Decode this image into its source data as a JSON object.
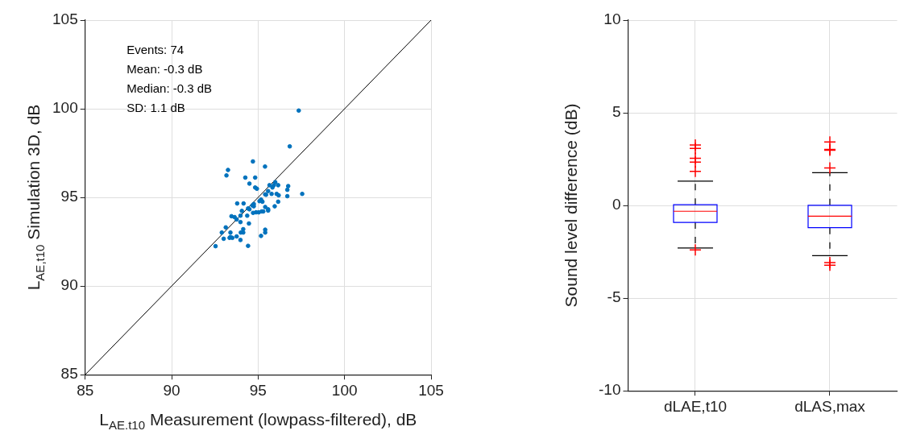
{
  "chart_data": [
    {
      "type": "scatter",
      "xlabel": "L$_{AE.t10}$ Measurement (lowpass-filtered), dB",
      "ylabel": "L$_{AE,t10}$ Simulation 3D, dB",
      "annotations": [
        "Events: 74",
        "Mean: -0.3 dB",
        "Median: -0.3 dB",
        "SD: 1.1 dB"
      ],
      "xlim": [
        85,
        105
      ],
      "xticks": [
        85,
        90,
        95,
        100,
        105
      ],
      "ylim": [
        85,
        105
      ],
      "yticks": [
        85,
        90,
        95,
        100,
        105
      ],
      "grid": true,
      "marker": "circle",
      "series": [
        {
          "color": "#0072bd",
          "x": [
            97.35,
            96.83,
            94.7,
            93.26,
            93.17,
            95.4,
            94.26,
            94.83,
            94.5,
            94.83,
            94.93,
            95.99,
            95.91,
            95.66,
            96.16,
            95.83,
            95.58,
            95.41,
            95.78,
            96.07,
            96.19,
            96.74,
            96.69,
            96.69,
            97.55,
            95.17,
            95.08,
            95.25,
            96.16,
            95.96,
            95.41,
            95.58,
            95.58,
            95.3,
            95.21,
            95.04,
            94.88,
            94.71,
            94.75,
            94.75,
            94.42,
            94.5,
            94.37,
            94.16,
            93.79,
            94.06,
            93.98,
            93.64,
            93.46,
            93.76,
            93.98,
            94.47,
            93.13,
            94.14,
            94.14,
            94.0,
            95.41,
            95.41,
            95.17,
            93.4,
            92.9,
            93.76,
            93.4,
            93.51,
            93.35,
            93.01,
            93.98,
            94.42,
            92.54,
            94.67,
            95.46
          ],
          "values": [
            99.9,
            97.88,
            97.03,
            96.55,
            96.24,
            96.74,
            96.12,
            96.12,
            95.78,
            95.56,
            95.49,
            95.86,
            95.69,
            95.69,
            95.69,
            95.56,
            95.36,
            95.17,
            95.2,
            95.2,
            95.12,
            95.64,
            95.43,
            95.07,
            95.2,
            94.88,
            94.79,
            94.76,
            94.76,
            94.5,
            94.46,
            94.33,
            94.26,
            94.21,
            94.21,
            94.16,
            94.16,
            94.13,
            94.5,
            94.63,
            94.38,
            94.33,
            93.97,
            94.66,
            94.66,
            94.24,
            93.97,
            93.89,
            93.94,
            93.76,
            93.61,
            93.53,
            93.31,
            93.21,
            93.02,
            93.02,
            93.18,
            93.02,
            92.83,
            93.02,
            93.02,
            92.8,
            92.77,
            92.72,
            92.72,
            92.67,
            92.6,
            92.27,
            92.25,
            94.55,
            95.15
          ]
        },
        {
          "type": "line",
          "color": "#000000",
          "marker": "none",
          "x": [
            85,
            105
          ],
          "values": [
            85,
            105
          ]
        }
      ]
    },
    {
      "type": "box",
      "ylabel": "Sound level difference (dB)",
      "categories": [
        "dLAE,t10",
        "dLAS,max"
      ],
      "ylim": [
        -10,
        10
      ],
      "yticks": [
        -10,
        -5,
        0,
        5,
        10
      ],
      "grid": true,
      "series": [
        {
          "color": "#0000ff",
          "boxes": [
            {
              "low": -2.29,
              "q1": -0.91,
              "median": -0.31,
              "q3": 0.04,
              "high": 1.31,
              "outliers": [
                3.26,
                3.08,
                2.55,
                2.34,
                1.84,
                -2.4
              ]
            },
            {
              "low": -2.71,
              "q1": -1.2,
              "median": -0.58,
              "q3": 0.01,
              "high": 1.77,
              "outliers": [
                3.43,
                3.03,
                2.98,
                2.02,
                -3.08,
                -3.22
              ]
            }
          ]
        }
      ]
    }
  ]
}
